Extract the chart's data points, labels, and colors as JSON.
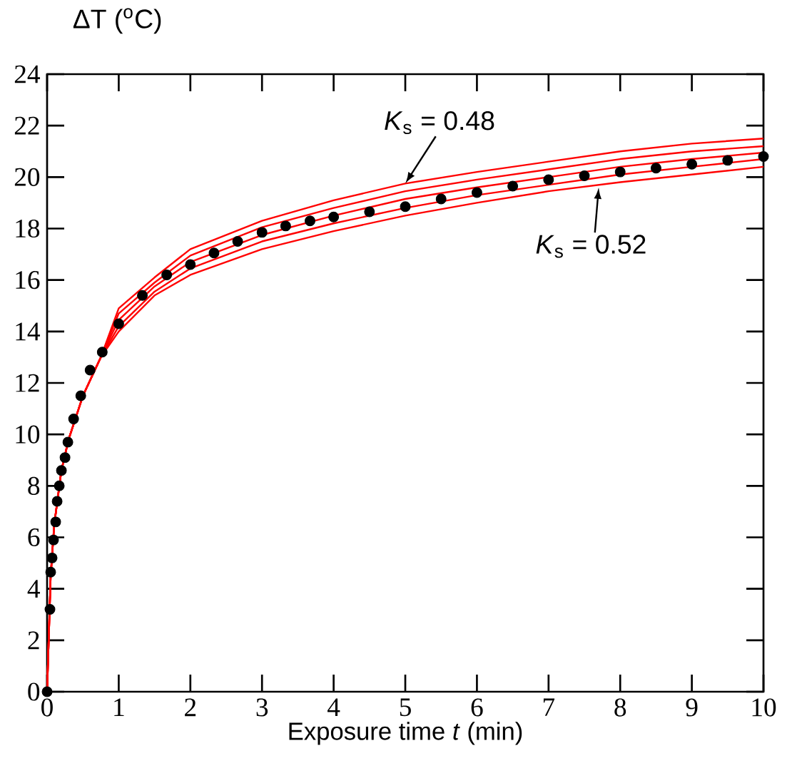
{
  "chart_data": {
    "type": "line",
    "xlabel": "Exposure time  *t* (min)",
    "ylabel": "ΔT ($^{o}$C)",
    "xlim": [
      0,
      10
    ],
    "ylim": [
      0,
      24
    ],
    "xticks": [
      0,
      1,
      2,
      3,
      4,
      5,
      6,
      7,
      8,
      9,
      10
    ],
    "yticks": [
      0,
      2,
      4,
      6,
      8,
      10,
      12,
      14,
      16,
      18,
      20,
      22,
      24
    ],
    "grid": false,
    "annotations": [
      {
        "text": "*K*$_{s}$ = 0.48",
        "x": 5,
        "y": 19.75
      },
      {
        "text": "*K*$_{s}$ = 0.52",
        "x": 7.7,
        "y": 19.6
      }
    ],
    "series": [
      {
        "color": "#ff0000",
        "x": [
          0,
          0.05,
          0.1,
          0.2,
          0.3,
          0.5,
          0.75,
          1,
          1.5,
          2,
          3,
          4,
          5,
          6,
          7,
          8,
          9,
          10
        ],
        "values": [
          0,
          4.5,
          6.5,
          8.6,
          9.8,
          11.5,
          13.0,
          14.9,
          16.1,
          17.2,
          18.3,
          19.1,
          19.75,
          20.2,
          20.6,
          21.0,
          21.3,
          21.5
        ]
      },
      {
        "color": "#ff0000",
        "x": [
          0,
          0.05,
          0.1,
          0.2,
          0.3,
          0.5,
          0.75,
          1,
          1.5,
          2,
          3,
          4,
          5,
          6,
          7,
          8,
          9,
          10
        ],
        "values": [
          0,
          4.5,
          6.5,
          8.6,
          9.8,
          11.5,
          13.0,
          14.7,
          15.9,
          16.95,
          18.05,
          18.8,
          19.45,
          19.9,
          20.3,
          20.7,
          21.0,
          21.2
        ]
      },
      {
        "color": "#ff0000",
        "x": [
          0,
          0.05,
          0.1,
          0.2,
          0.3,
          0.5,
          0.75,
          1,
          1.5,
          2,
          3,
          4,
          5,
          6,
          7,
          8,
          9,
          10
        ],
        "values": [
          0,
          4.5,
          6.5,
          8.6,
          9.8,
          11.5,
          13.0,
          14.45,
          15.75,
          16.7,
          17.75,
          18.5,
          19.15,
          19.6,
          20.0,
          20.4,
          20.7,
          20.95
        ]
      },
      {
        "color": "#ff0000",
        "x": [
          0,
          0.05,
          0.1,
          0.2,
          0.3,
          0.5,
          0.75,
          1,
          1.5,
          2,
          3,
          4,
          5,
          6,
          7,
          8,
          9,
          10
        ],
        "values": [
          0,
          4.5,
          6.5,
          8.6,
          9.8,
          11.5,
          13.0,
          14.2,
          15.55,
          16.45,
          17.5,
          18.2,
          18.8,
          19.3,
          19.7,
          20.1,
          20.4,
          20.7
        ]
      },
      {
        "color": "#ff0000",
        "x": [
          0,
          0.05,
          0.1,
          0.2,
          0.3,
          0.5,
          0.75,
          1,
          1.5,
          2,
          3,
          4,
          5,
          6,
          7,
          8,
          9,
          10
        ],
        "values": [
          0,
          4.5,
          6.5,
          8.6,
          9.8,
          11.5,
          13.0,
          14.0,
          15.4,
          16.2,
          17.2,
          17.9,
          18.5,
          19.0,
          19.45,
          19.8,
          20.1,
          20.4
        ]
      },
      {
        "type": "scatter",
        "color": "#000000",
        "x": [
          0,
          0.04,
          0.05,
          0.07,
          0.09,
          0.12,
          0.14,
          0.17,
          0.2,
          0.25,
          0.29,
          0.37,
          0.47,
          0.6,
          0.77,
          1.0,
          1.33,
          1.67,
          2.0,
          2.33,
          2.66,
          3.0,
          3.33,
          3.67,
          4.0,
          4.5,
          5,
          5.5,
          6,
          6.5,
          7,
          7.5,
          8,
          8.5,
          9,
          9.5,
          10
        ],
        "values": [
          0,
          3.2,
          4.65,
          5.2,
          5.9,
          6.6,
          7.4,
          8.0,
          8.6,
          9.1,
          9.7,
          10.6,
          11.5,
          12.5,
          13.2,
          14.3,
          15.4,
          16.2,
          16.6,
          17.05,
          17.5,
          17.85,
          18.1,
          18.3,
          18.45,
          18.65,
          18.85,
          19.15,
          19.4,
          19.65,
          19.9,
          20.05,
          20.2,
          20.35,
          20.5,
          20.65,
          20.8
        ]
      }
    ]
  }
}
